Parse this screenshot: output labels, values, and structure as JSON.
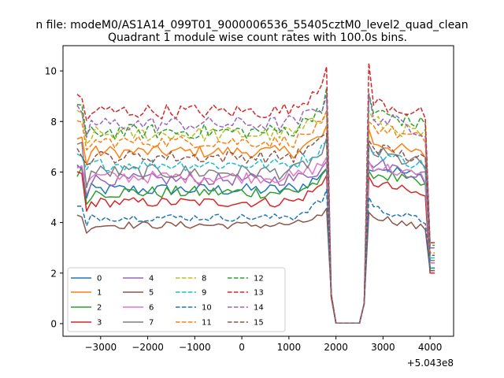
{
  "chart_data": {
    "type": "line",
    "suptitle": "n file: modeM0/AS1A14_099T01_9000006536_55405cztM0_level2_quad_clean",
    "title": "Quadrant 1 module wise count rates with 100.0s bins.",
    "xlabel": "",
    "ylabel": "",
    "x_offset_label": "+5.043e8",
    "xlim": [
      -3800,
      4500
    ],
    "ylim": [
      -0.5,
      11.0
    ],
    "xticks": [
      -3000,
      -2000,
      -1000,
      0,
      1000,
      2000,
      3000,
      4000
    ],
    "xtick_labels": [
      "−3000",
      "−2000",
      "−1000",
      "0",
      "1000",
      "2000",
      "3000",
      "4000"
    ],
    "yticks": [
      0,
      2,
      4,
      6,
      8,
      10
    ],
    "ytick_labels": [
      "0",
      "2",
      "4",
      "6",
      "8",
      "10"
    ],
    "legend_location": "lower-left",
    "x_range": [
      -3500,
      4100
    ],
    "bin_width": 100,
    "gap_range": [
      1900,
      2500
    ],
    "series": [
      {
        "name": "0",
        "color": "#1f77b4",
        "style": "solid",
        "base": 5.3,
        "noise": 0.25,
        "start": 6.2,
        "peak": 6.2,
        "post": 6.3,
        "end": 2.1
      },
      {
        "name": "1",
        "color": "#ff7f0e",
        "style": "solid",
        "base": 6.8,
        "noise": 0.25,
        "start": 7.3,
        "peak": 7.8,
        "post": 7.2,
        "end": 2.5
      },
      {
        "name": "2",
        "color": "#2ca02c",
        "style": "solid",
        "base": 5.2,
        "noise": 0.25,
        "start": 6.0,
        "peak": 6.0,
        "post": 6.0,
        "end": 2.2
      },
      {
        "name": "3",
        "color": "#d62728",
        "style": "solid",
        "base": 4.8,
        "noise": 0.2,
        "start": 5.9,
        "peak": 5.9,
        "post": 5.6,
        "end": 2.0
      },
      {
        "name": "4",
        "color": "#9467bd",
        "style": "solid",
        "base": 5.7,
        "noise": 0.25,
        "start": 6.3,
        "peak": 6.4,
        "post": 6.4,
        "end": 2.4
      },
      {
        "name": "5",
        "color": "#8c564b",
        "style": "solid",
        "base": 3.9,
        "noise": 0.15,
        "start": 4.3,
        "peak": 4.5,
        "post": 4.3,
        "end": 2.1
      },
      {
        "name": "6",
        "color": "#e377c2",
        "style": "solid",
        "base": 5.8,
        "noise": 0.25,
        "start": 6.3,
        "peak": 6.6,
        "post": 6.3,
        "end": 2.4
      },
      {
        "name": "7",
        "color": "#7f7f7f",
        "style": "solid",
        "base": 6.0,
        "noise": 0.3,
        "start": 7.0,
        "peak": 7.2,
        "post": 6.8,
        "end": 2.5
      },
      {
        "name": "8",
        "color": "#bcbd22",
        "style": "dashed",
        "base": 7.5,
        "noise": 0.3,
        "start": 8.2,
        "peak": 8.5,
        "post": 8.0,
        "end": 3.0
      },
      {
        "name": "9",
        "color": "#17becf",
        "style": "dashed",
        "base": 6.3,
        "noise": 0.25,
        "start": 6.6,
        "peak": 7.3,
        "post": 6.8,
        "end": 2.6
      },
      {
        "name": "10",
        "color": "#1f77b4",
        "style": "dashed",
        "base": 4.2,
        "noise": 0.15,
        "start": 4.6,
        "peak": 5.3,
        "post": 4.6,
        "end": 2.2
      },
      {
        "name": "11",
        "color": "#ff7f0e",
        "style": "dashed",
        "base": 7.2,
        "noise": 0.25,
        "start": 7.8,
        "peak": 8.3,
        "post": 7.8,
        "end": 2.8
      },
      {
        "name": "12",
        "color": "#2ca02c",
        "style": "dashed",
        "base": 7.6,
        "noise": 0.3,
        "start": 8.6,
        "peak": 9.3,
        "post": 8.4,
        "end": 3.1
      },
      {
        "name": "13",
        "color": "#d62728",
        "style": "dashed",
        "base": 8.4,
        "noise": 0.3,
        "start": 8.9,
        "peak": 10.3,
        "post": 8.8,
        "end": 3.2
      },
      {
        "name": "14",
        "color": "#9467bd",
        "style": "dashed",
        "base": 7.9,
        "noise": 0.3,
        "start": 8.4,
        "peak": 9.1,
        "post": 8.2,
        "end": 3.0
      },
      {
        "name": "15",
        "color": "#8c564b",
        "style": "dashed",
        "base": 6.6,
        "noise": 0.25,
        "start": 6.8,
        "peak": 7.6,
        "post": 7.0,
        "end": 2.7
      }
    ]
  }
}
